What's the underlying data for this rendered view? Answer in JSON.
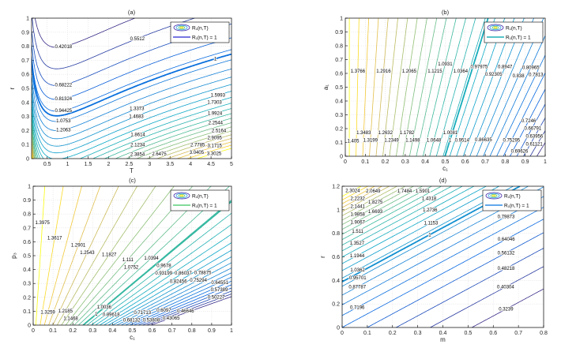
{
  "chart_data": [
    {
      "type": "contour",
      "title": "(a)",
      "xlabel": "T",
      "ylabel": "r",
      "xlim": [
        0.12,
        5
      ],
      "ylim": [
        0,
        1
      ],
      "xticks": [
        "0.5",
        "1",
        "1.5",
        "2",
        "2.5",
        "3",
        "3.5",
        "4",
        "4.5",
        "5"
      ],
      "yticks": [
        "0",
        "0.1",
        "0.2",
        "0.3",
        "0.4",
        "0.5",
        "0.6",
        "0.7",
        "0.8",
        "0.9",
        "1"
      ],
      "grid": true,
      "legend": {
        "placement": "top-right",
        "entries": [
          "R₁(n,T)",
          "R₁(n,T) = 1"
        ],
        "line_color": "#4a4ad8"
      },
      "levels": [
        "0.42018",
        "0.5512",
        "0.68222",
        "0.81324",
        "0.94425",
        "1",
        "1.0753",
        "1.2063",
        "1.3373",
        "1.4683",
        "1.5993",
        "1.7303",
        "1.8614",
        "1.9924",
        "2.1234",
        "2.2544",
        "2.3854",
        "2.5164",
        "2.6475",
        "2.7785",
        "2.9095",
        "3.0405",
        "3.1715",
        "3.3025"
      ],
      "highlight_level": "1"
    },
    {
      "type": "contour",
      "title": "(b)",
      "xlabel": "c₁",
      "ylabel": "a₁",
      "xlim": [
        0,
        1
      ],
      "ylim": [
        0,
        1
      ],
      "xticks": [
        "0",
        "0.1",
        "0.2",
        "0.3",
        "0.4",
        "0.5",
        "0.6",
        "0.7",
        "0.8",
        "0.9",
        "1"
      ],
      "yticks": [
        "0",
        "0.1",
        "0.2",
        "0.3",
        "0.4",
        "0.5",
        "0.6",
        "0.7",
        "0.8",
        "0.9",
        "1"
      ],
      "grid": true,
      "legend": {
        "placement": "top-right",
        "entries": [
          "R₁(n,T)",
          "R₁(n,T) = 1"
        ],
        "line_color": "#1fb0b8"
      },
      "levels": [
        "1.405",
        "1.3766",
        "1.3483",
        "1.3199",
        "1.2916",
        "1.2632",
        "1.2349",
        "1.2065",
        "1.1782",
        "1.1498",
        "1.1215",
        "1.0931",
        "1.0648",
        "1.0364",
        "1.0081",
        "1",
        "0.97975",
        "0.9514",
        "0.92305",
        "0.8947",
        "0.86635",
        "0.838",
        "0.80965",
        "0.7813",
        "0.75295",
        "0.7246",
        "0.69626",
        "0.66791",
        "0.63956",
        "0.61121"
      ],
      "highlight_level": "1"
    },
    {
      "type": "contour",
      "title": "(c)",
      "xlabel": "c₁",
      "ylabel": "p₃",
      "xlim": [
        0,
        1
      ],
      "ylim": [
        0,
        1
      ],
      "xticks": [
        "0",
        "0.1",
        "0.2",
        "0.3",
        "0.4",
        "0.5",
        "0.6",
        "0.7",
        "0.8",
        "0.9",
        "1"
      ],
      "yticks": [
        "0",
        "0.1",
        "0.2",
        "0.3",
        "0.4",
        "0.5",
        "0.6",
        "0.7",
        "0.8",
        "0.9",
        "1"
      ],
      "grid": true,
      "legend": {
        "placement": "top-right",
        "entries": [
          "R₁(n,T)",
          "R₁(n,T) = 1"
        ],
        "line_color": "#5ccf7a"
      },
      "levels": [
        "1.3975",
        "1.3617",
        "1.3259",
        "1.2901",
        "1.2543",
        "1.2185",
        "1.1827",
        "1.1468",
        "1.111",
        "1.0752",
        "1.0394",
        "1.0036",
        "1",
        "0.9678",
        "0.93199",
        "0.89618",
        "0.86037",
        "0.82456",
        "0.78875",
        "0.75294",
        "0.71713",
        "0.68132",
        "0.64551",
        "0.6097",
        "0.57389",
        "0.53808",
        "0.50227",
        "0.46646",
        "0.43065"
      ],
      "highlight_level": "1"
    },
    {
      "type": "contour",
      "title": "(d)",
      "xlabel": "m",
      "ylabel": "r",
      "xlim": [
        0,
        0.8
      ],
      "ylim": [
        0,
        1.2
      ],
      "xticks": [
        "0",
        "0.1",
        "0.2",
        "0.3",
        "0.4",
        "0.5",
        "0.6",
        "0.7",
        "0.8"
      ],
      "yticks": [
        "0",
        "0.2",
        "0.4",
        "0.6",
        "0.8",
        "1",
        "1.2"
      ],
      "grid": true,
      "legend": {
        "placement": "top-right",
        "entries": [
          "R₁(n,T)",
          "R₁(n,T) = 1"
        ],
        "line_color": "#2f8be6"
      },
      "levels": [
        "0.3239",
        "0.40304",
        "0.48218",
        "0.56132",
        "0.64046",
        "0.7196",
        "0.79873",
        "0.87787",
        "0.95701",
        "1",
        "1.0362",
        "1.1153",
        "1.1944",
        "1.2736",
        "1.3527",
        "1.4318",
        "1.511",
        "1.5901",
        "1.6693",
        "1.7484",
        "1.8275",
        "1.9067",
        "1.9858",
        "2.0649",
        "2.1441",
        "2.2232",
        "2.3024"
      ],
      "highlight_level": "1"
    }
  ]
}
